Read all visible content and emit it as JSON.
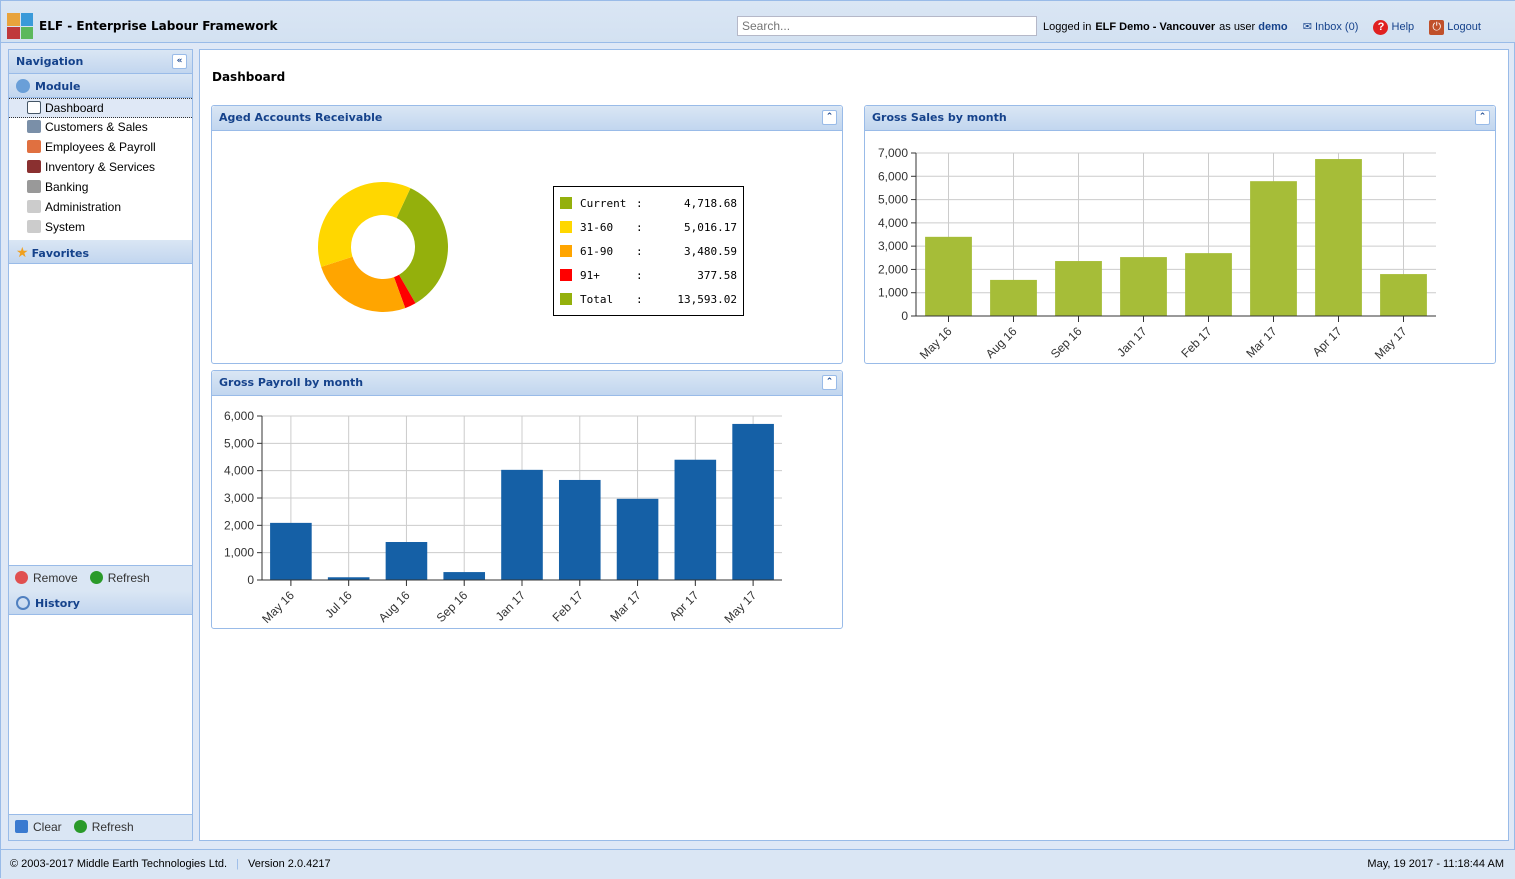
{
  "header": {
    "title": "ELF - Enterprise Labour Framework",
    "search_placeholder": "Search...",
    "logged_in": "Logged in",
    "company": "ELF Demo - Vancouver",
    "as_user": "as user",
    "user": "demo",
    "inbox": "Inbox (0)",
    "help": "Help",
    "logout": "Logout"
  },
  "sidebar": {
    "title": "Navigation",
    "module": "Module",
    "items": [
      {
        "label": "Dashboard"
      },
      {
        "label": "Customers & Sales"
      },
      {
        "label": "Employees & Payroll"
      },
      {
        "label": "Inventory & Services"
      },
      {
        "label": "Banking"
      },
      {
        "label": "Administration"
      },
      {
        "label": "System"
      }
    ],
    "favorites": "Favorites",
    "remove": "Remove",
    "refresh": "Refresh",
    "history": "History",
    "clear": "Clear",
    "refresh2": "Refresh"
  },
  "main": {
    "title": "Dashboard"
  },
  "colors": {
    "current": "#94b00c",
    "d31_60": "#ffd700",
    "d61_90": "#ffa500",
    "d91": "#ff0000",
    "sales": "#a6bd38",
    "payroll": "#1560a6"
  },
  "chart_data": [
    {
      "type": "pie",
      "title": "Aged Accounts Receivable",
      "labels": [
        "Current",
        "31-60",
        "61-90",
        "91+"
      ],
      "values": [
        4718.68,
        5016.17,
        3480.59,
        377.58
      ],
      "display": [
        "4,718.68",
        "5,016.17",
        "3,480.59",
        "377.58"
      ],
      "total_label": "Total",
      "total": "13,593.02",
      "sep": ":"
    },
    {
      "type": "bar",
      "title": "Gross Sales by month",
      "categories": [
        "May 16",
        "Aug 16",
        "Sep 16",
        "Jan 17",
        "Feb 17",
        "Mar 17",
        "Apr 17",
        "May 17"
      ],
      "values": [
        3400,
        1550,
        2360,
        2530,
        2700,
        5790,
        6740,
        1800
      ],
      "ylim": [
        0,
        7000
      ],
      "yticks": [
        "0",
        "1,000",
        "2,000",
        "3,000",
        "4,000",
        "5,000",
        "6,000",
        "7,000"
      ]
    },
    {
      "type": "bar",
      "title": "Gross Payroll by month",
      "categories": [
        "May 16",
        "Jul 16",
        "Aug 16",
        "Sep 16",
        "Jan 17",
        "Feb 17",
        "Mar 17",
        "Apr 17",
        "May 17"
      ],
      "values": [
        2090,
        100,
        1390,
        290,
        4030,
        3660,
        2970,
        4400,
        5710
      ],
      "ylim": [
        0,
        6000
      ],
      "yticks": [
        "0",
        "1,000",
        "2,000",
        "3,000",
        "4,000",
        "5,000",
        "6,000"
      ]
    }
  ],
  "footer": {
    "copyright": "© 2003-2017 Middle Earth Technologies Ltd.",
    "version": "Version 2.0.4217",
    "datetime": "May, 19 2017 - 11:18:44 AM"
  }
}
